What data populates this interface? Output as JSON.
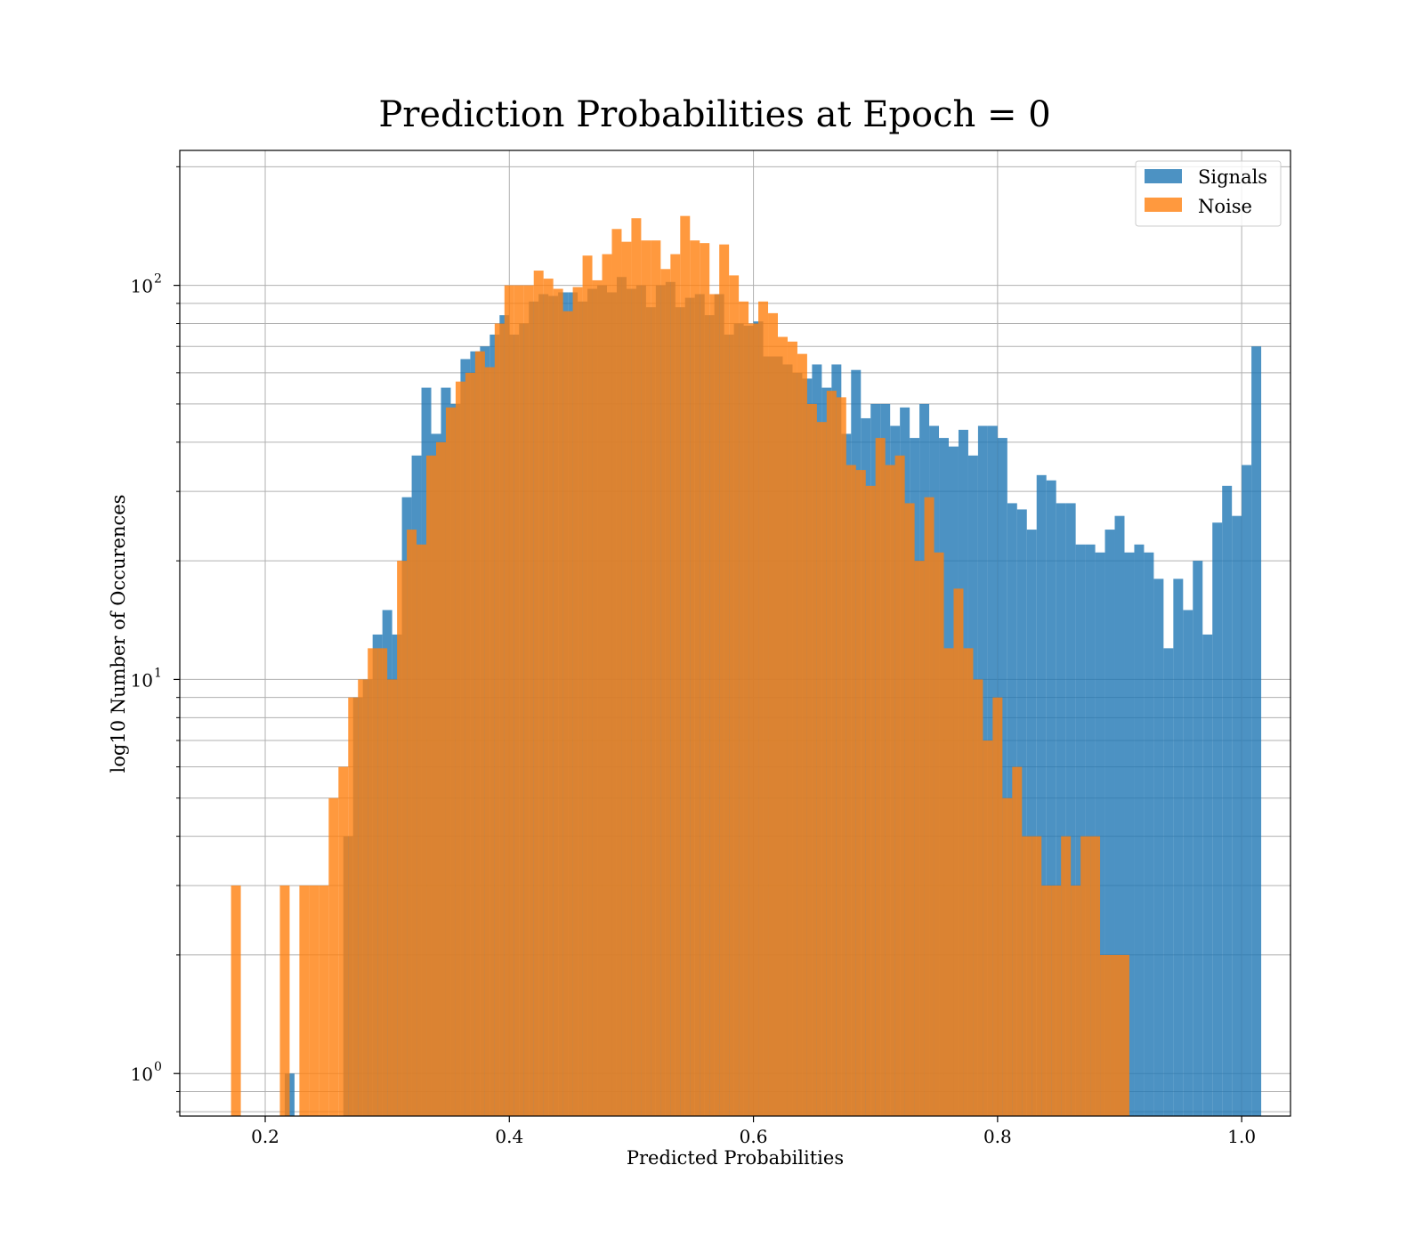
{
  "chart_data": {
    "type": "bar",
    "subtype": "overlapping-histogram",
    "title": "Prediction Probabilities at Epoch = 0",
    "xlabel": "Predicted Probabilities",
    "ylabel": "log10 Number of Occurences",
    "yscale": "log",
    "xlim": [
      0.13,
      1.04
    ],
    "ylim": [
      0.78,
      220
    ],
    "xticks": [
      0.2,
      0.4,
      0.6,
      0.8,
      1.0
    ],
    "xtick_labels": [
      "0.2",
      "0.4",
      "0.6",
      "0.8",
      "1.0"
    ],
    "yticks": [
      {
        "value": 1,
        "base": "10",
        "exp": "0"
      },
      {
        "value": 10,
        "base": "10",
        "exp": "1"
      },
      {
        "value": 100,
        "base": "10",
        "exp": "2"
      }
    ],
    "grid": true,
    "legend": {
      "position": "top-right",
      "entries": [
        "Signals",
        "Noise"
      ]
    },
    "series": [
      {
        "name": "Signals",
        "color": "#1f77b4",
        "opacity": 0.8,
        "bin_width": 0.008,
        "start": 0.216,
        "counts": [
          1,
          0,
          0,
          0,
          0,
          0,
          4,
          9,
          10,
          13,
          15,
          13,
          29,
          37,
          55,
          42,
          55,
          50,
          65,
          68,
          70,
          75,
          84,
          75,
          80,
          91,
          95,
          94,
          96,
          96,
          91,
          98,
          100,
          96,
          105,
          98,
          100,
          88,
          100,
          102,
          88,
          93,
          95,
          84,
          95,
          75,
          80,
          79,
          81,
          66,
          66,
          63,
          60,
          58,
          63,
          55,
          63,
          42,
          61,
          46,
          50,
          50,
          44,
          49,
          41,
          50,
          44,
          41,
          39,
          43,
          37,
          44,
          44,
          41,
          28,
          27,
          24,
          33,
          32,
          28,
          28,
          22,
          22,
          21,
          24,
          26,
          21,
          22,
          21,
          18,
          12,
          18,
          15,
          20,
          13,
          25,
          31,
          26,
          35,
          70
        ],
        "render_zeros": false
      },
      {
        "name": "Noise",
        "color": "#ff7f0e",
        "opacity": 0.8,
        "bin_width": 0.008,
        "start": 0.172,
        "counts": [
          3,
          0,
          0,
          0,
          0,
          3,
          0,
          3,
          3,
          3,
          5,
          6,
          9,
          10,
          12,
          12,
          10,
          20,
          24,
          22,
          37,
          40,
          49,
          57,
          60,
          68,
          62,
          80,
          100,
          100,
          100,
          109,
          104,
          98,
          86,
          99,
          119,
          103,
          120,
          139,
          129,
          148,
          130,
          130,
          110,
          120,
          150,
          130,
          128,
          95,
          127,
          106,
          91,
          80,
          91,
          85,
          74,
          72,
          67,
          50,
          45,
          54,
          52,
          35,
          34,
          31,
          41,
          35,
          37,
          28,
          20,
          29,
          21,
          12,
          17,
          12,
          10,
          7,
          9,
          5,
          6,
          4,
          4,
          3,
          3,
          4,
          3,
          4,
          4,
          2,
          2,
          2,
          0
        ],
        "render_zeros": false
      }
    ]
  }
}
